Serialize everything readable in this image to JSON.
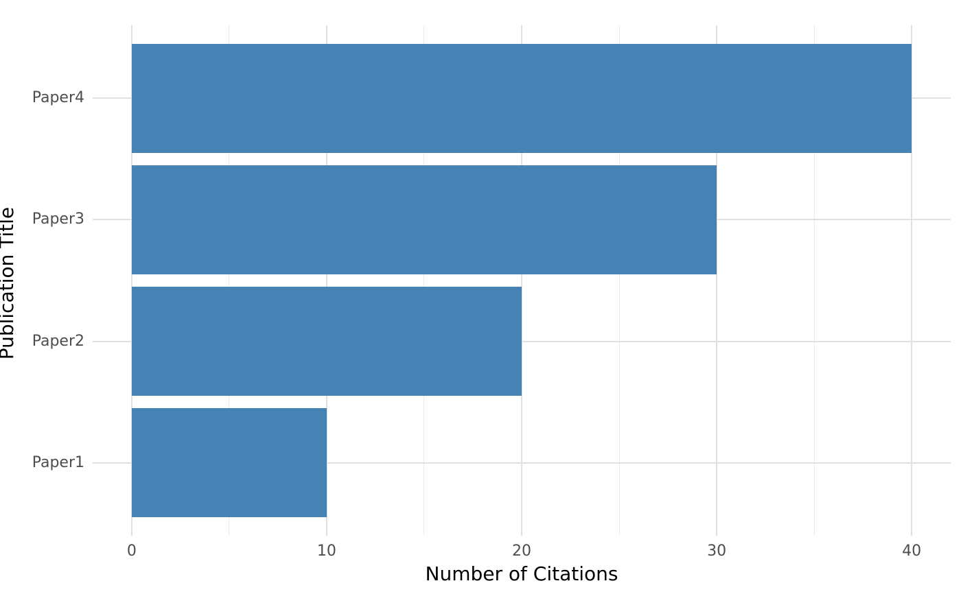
{
  "chart_data": {
    "type": "bar",
    "orientation": "horizontal",
    "categories": [
      "Paper1",
      "Paper2",
      "Paper3",
      "Paper4"
    ],
    "values": [
      10,
      20,
      30,
      40
    ],
    "xlabel": "Number of Citations",
    "ylabel": "Publication Title",
    "xlim": [
      0,
      40
    ],
    "x_major_ticks": [
      0,
      10,
      20,
      30,
      40
    ],
    "x_minor_gridlines": [
      5,
      15,
      25,
      35
    ],
    "x_axis_expansion_units": 2,
    "grid": true,
    "legend": false,
    "bar_width_fraction": 0.9,
    "colors": {
      "bar": "#4682B4",
      "major_grid": "#e0e0e0",
      "minor_grid": "#ebebeb",
      "tick_label": "#4d4d4d",
      "axis_title": "#000000",
      "background": "#ffffff"
    }
  }
}
